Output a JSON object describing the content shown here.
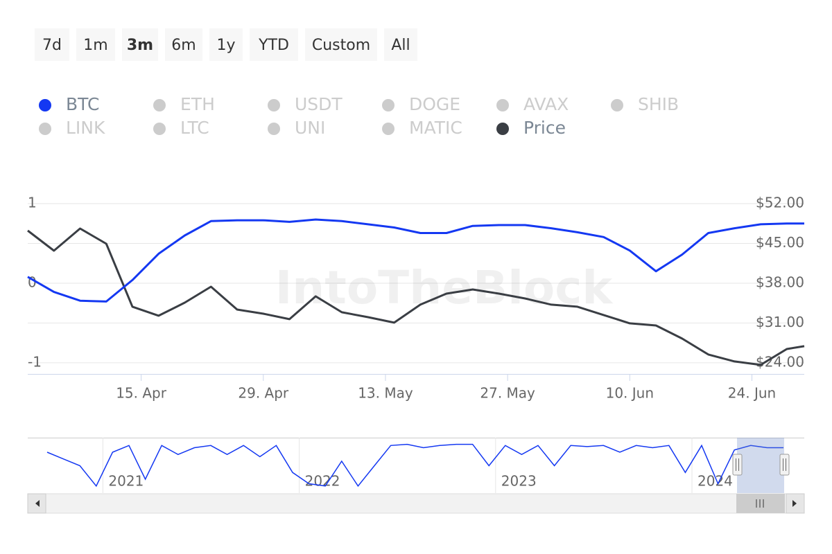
{
  "range_selector": {
    "buttons": [
      "7d",
      "1m",
      "3m",
      "6m",
      "1y",
      "YTD",
      "Custom",
      "All"
    ],
    "selected": "3m"
  },
  "chart_data": {
    "type": "line",
    "watermark": "IntoTheBlock",
    "x": [
      "04-02",
      "04-05",
      "04-08",
      "04-11",
      "04-14",
      "04-17",
      "04-20",
      "04-23",
      "04-26",
      "04-29",
      "05-02",
      "05-05",
      "05-08",
      "05-11",
      "05-14",
      "05-17",
      "05-20",
      "05-23",
      "05-26",
      "05-29",
      "06-01",
      "06-04",
      "06-07",
      "06-10",
      "06-13",
      "06-16",
      "06-19",
      "06-22",
      "06-25",
      "06-28",
      "06-30"
    ],
    "xlim": [
      "04-02",
      "06-30"
    ],
    "xticks": [
      {
        "value": "04-15",
        "label": "15. Apr"
      },
      {
        "value": "04-29",
        "label": "29. Apr"
      },
      {
        "value": "05-13",
        "label": "13. May"
      },
      {
        "value": "05-27",
        "label": "27. May"
      },
      {
        "value": "06-10",
        "label": "10. Jun"
      },
      {
        "value": "06-24",
        "label": "24. Jun"
      }
    ],
    "ylim": [
      -1.14,
      1
    ],
    "yticks": [
      1,
      0,
      -1
    ],
    "y2lim": [
      22.04,
      52
    ],
    "y2ticks": [
      {
        "value": 52,
        "label": "$52.00"
      },
      {
        "value": 45,
        "label": "$45.00"
      },
      {
        "value": 38,
        "label": "$38.00"
      },
      {
        "value": 31,
        "label": "$31.00"
      },
      {
        "value": 24,
        "label": "$24.00"
      }
    ],
    "grid": true,
    "series": [
      {
        "name": "BTC",
        "color": "#1438f2",
        "visible": true,
        "axis": "y",
        "values": [
          0.08,
          -0.11,
          -0.22,
          -0.23,
          0.04,
          0.37,
          0.6,
          0.78,
          0.79,
          0.79,
          0.77,
          0.8,
          0.78,
          0.74,
          0.7,
          0.63,
          0.63,
          0.72,
          0.73,
          0.73,
          0.69,
          0.64,
          0.58,
          0.41,
          0.15,
          0.36,
          0.63,
          0.69,
          0.74,
          0.75,
          0.75
        ]
      },
      {
        "name": "ETH",
        "color": "#cccccc",
        "visible": false
      },
      {
        "name": "USDT",
        "color": "#cccccc",
        "visible": false
      },
      {
        "name": "DOGE",
        "color": "#cccccc",
        "visible": false
      },
      {
        "name": "AVAX",
        "color": "#cccccc",
        "visible": false
      },
      {
        "name": "SHIB",
        "color": "#cccccc",
        "visible": false
      },
      {
        "name": "LINK",
        "color": "#cccccc",
        "visible": false
      },
      {
        "name": "LTC",
        "color": "#cccccc",
        "visible": false
      },
      {
        "name": "UNI",
        "color": "#cccccc",
        "visible": false
      },
      {
        "name": "MATIC",
        "color": "#cccccc",
        "visible": false
      },
      {
        "name": "Price",
        "color": "#3a3e44",
        "visible": true,
        "axis": "y2",
        "values": [
          47.25,
          43.72,
          47.62,
          44.94,
          33.86,
          32.28,
          34.59,
          37.39,
          33.37,
          32.64,
          31.67,
          35.69,
          32.89,
          32.03,
          31.06,
          34.23,
          36.17,
          36.9,
          36.17,
          35.32,
          34.23,
          33.86,
          32.4,
          30.94,
          30.57,
          28.26,
          25.46,
          24.24,
          23.63,
          26.43,
          26.92
        ]
      }
    ],
    "navigator": {
      "categories": [
        null,
        null,
        null,
        null,
        "2021",
        null,
        null,
        null,
        null,
        null,
        null,
        null,
        null,
        null,
        null,
        null,
        "2022",
        null,
        null,
        null,
        null,
        null,
        null,
        null,
        null,
        null,
        null,
        null,
        "2023",
        null,
        null,
        null,
        null,
        null,
        null,
        null,
        null,
        null,
        null,
        null,
        "2024",
        null,
        null,
        null,
        null,
        null
      ],
      "values": [
        0.6,
        0.3,
        0.0,
        -0.9,
        0.6,
        0.9,
        -0.6,
        0.9,
        0.5,
        0.8,
        0.9,
        0.5,
        0.9,
        0.4,
        0.9,
        -0.3,
        -0.8,
        -0.9,
        0.2,
        -0.9,
        0.0,
        0.9,
        0.95,
        0.8,
        0.9,
        0.95,
        0.95,
        0.0,
        0.9,
        0.5,
        0.9,
        0.0,
        0.9,
        0.85,
        0.9,
        0.6,
        0.9,
        0.8,
        0.9,
        -0.3,
        0.9,
        -0.8,
        0.7,
        0.9,
        0.8,
        0.8
      ],
      "ylim": [
        -1,
        1
      ],
      "color": "#1438f2"
    }
  }
}
